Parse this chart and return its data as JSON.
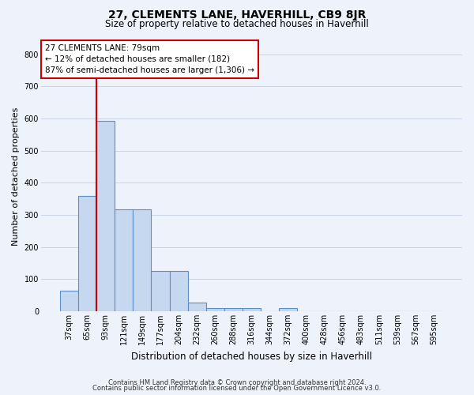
{
  "title": "27, CLEMENTS LANE, HAVERHILL, CB9 8JR",
  "subtitle": "Size of property relative to detached houses in Haverhill",
  "xlabel": "Distribution of detached houses by size in Haverhill",
  "ylabel": "Number of detached properties",
  "footnote1": "Contains HM Land Registry data © Crown copyright and database right 2024.",
  "footnote2": "Contains public sector information licensed under the Open Government Licence v3.0.",
  "categories": [
    "37sqm",
    "65sqm",
    "93sqm",
    "121sqm",
    "149sqm",
    "177sqm",
    "204sqm",
    "232sqm",
    "260sqm",
    "288sqm",
    "316sqm",
    "344sqm",
    "372sqm",
    "400sqm",
    "428sqm",
    "456sqm",
    "483sqm",
    "511sqm",
    "539sqm",
    "567sqm",
    "595sqm"
  ],
  "values": [
    65,
    360,
    593,
    318,
    318,
    125,
    125,
    27,
    10,
    10,
    10,
    0,
    10,
    0,
    0,
    0,
    0,
    0,
    0,
    0,
    0
  ],
  "bar_color": "#c5d8f0",
  "bar_edge_color": "#5b8fc9",
  "vline_x": 1.5,
  "vline_color": "#cc0000",
  "annotation_text1": "27 CLEMENTS LANE: 79sqm",
  "annotation_text2": "← 12% of detached houses are smaller (182)",
  "annotation_text3": "87% of semi-detached houses are larger (1,306) →",
  "annotation_box_facecolor": "#ffffff",
  "annotation_box_edgecolor": "#cc0000",
  "grid_color": "#c8d4e8",
  "background_color": "#eef2fb",
  "ylim": [
    0,
    840
  ],
  "yticks": [
    0,
    100,
    200,
    300,
    400,
    500,
    600,
    700,
    800
  ],
  "title_fontsize": 10,
  "subtitle_fontsize": 8.5,
  "ylabel_fontsize": 8,
  "xlabel_fontsize": 8.5,
  "tick_fontsize": 7,
  "annot_fontsize": 7.5,
  "footnote_fontsize": 6
}
